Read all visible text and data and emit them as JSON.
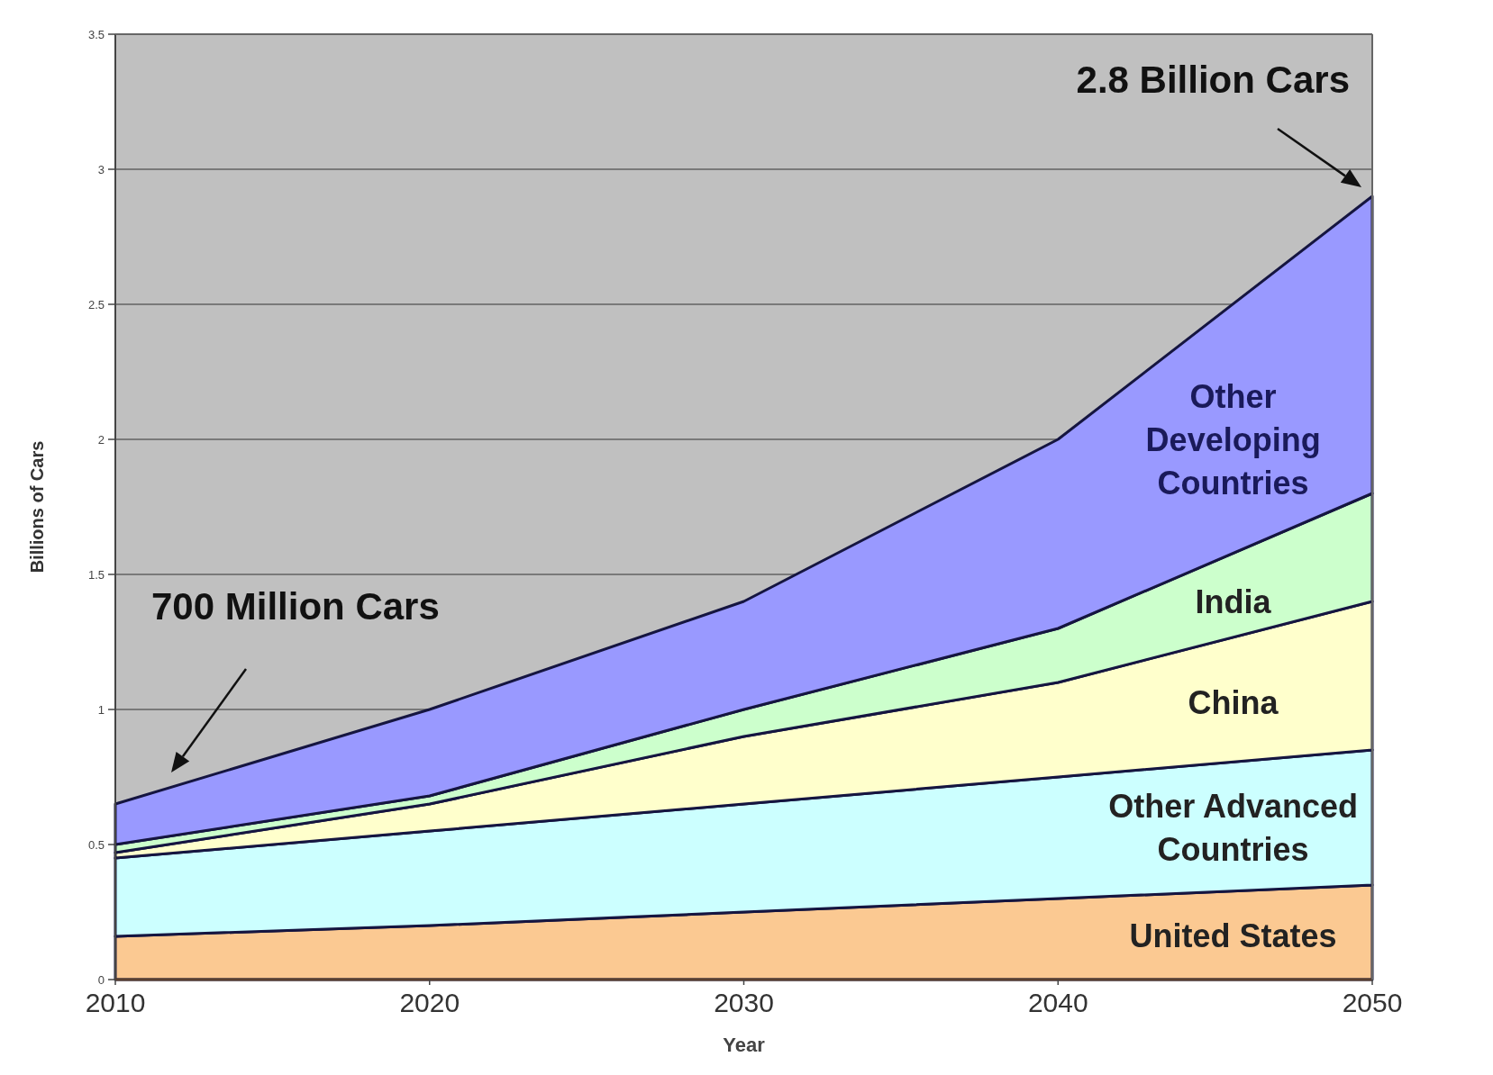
{
  "chart_data": {
    "type": "area",
    "stacked": true,
    "xlabel": "Year",
    "ylabel": "Billions of Cars",
    "x": [
      2010,
      2020,
      2030,
      2040,
      2050
    ],
    "xlim": [
      2010,
      2050
    ],
    "xticks": [
      2010,
      2020,
      2030,
      2040,
      2050
    ],
    "ylim": [
      0,
      3.5
    ],
    "yticks": [
      0,
      0.5,
      1,
      1.5,
      2,
      2.5,
      3,
      3.5
    ],
    "grid": "y",
    "legend": false,
    "series": [
      {
        "name": "United States",
        "color": "#fbc992",
        "values": [
          0.16,
          0.2,
          0.25,
          0.3,
          0.35
        ]
      },
      {
        "name": "Other Advanced Countries",
        "color": "#ccffff",
        "values": [
          0.29,
          0.35,
          0.4,
          0.45,
          0.5
        ]
      },
      {
        "name": "China",
        "color": "#ffffcc",
        "values": [
          0.02,
          0.1,
          0.25,
          0.35,
          0.55
        ]
      },
      {
        "name": "India",
        "color": "#ccffcc",
        "values": [
          0.03,
          0.03,
          0.1,
          0.2,
          0.4
        ]
      },
      {
        "name": "Other Developing Countries",
        "color": "#9999ff",
        "values": [
          0.15,
          0.32,
          0.4,
          0.7,
          1.1
        ]
      }
    ],
    "annotations": [
      "700 Million Cars",
      {
        "text": "2.8 Billion Cars",
        "x": 2050,
        "y": 2.9
      }
    ]
  }
}
